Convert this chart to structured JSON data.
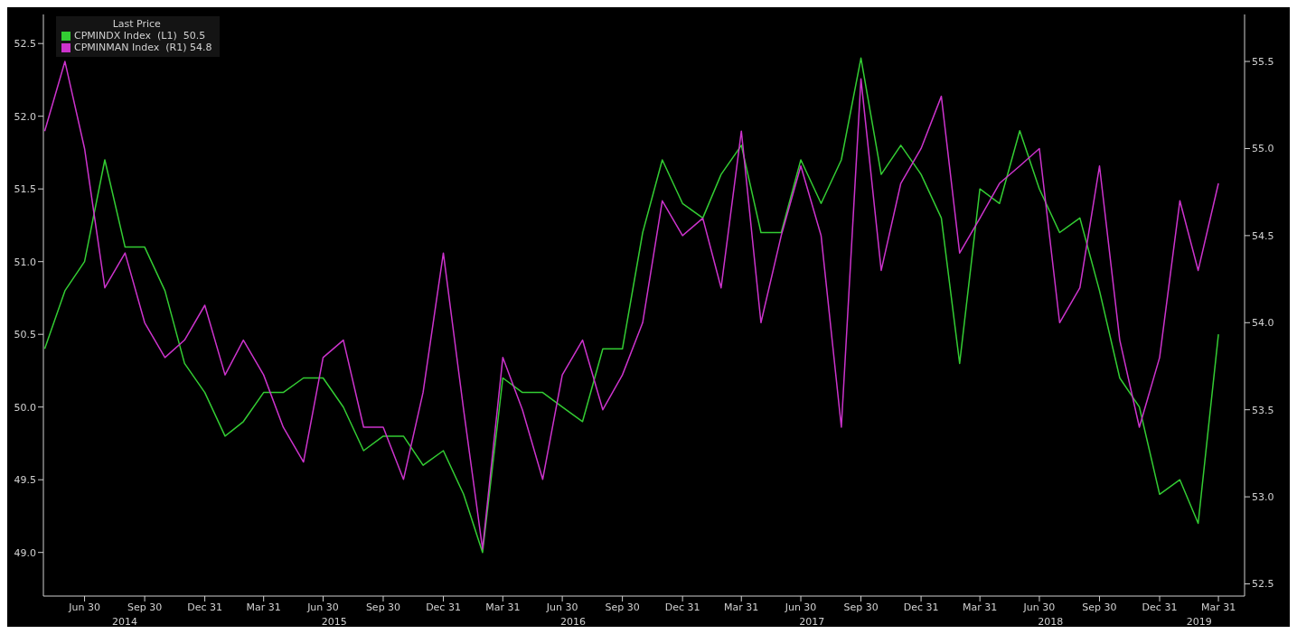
{
  "chart_data": {
    "type": "line",
    "legend_title": "Last Price",
    "x": [
      "2014-04-30",
      "2014-05-31",
      "2014-06-30",
      "2014-07-31",
      "2014-08-31",
      "2014-09-30",
      "2014-10-31",
      "2014-11-30",
      "2014-12-31",
      "2015-01-31",
      "2015-02-28",
      "2015-03-31",
      "2015-04-30",
      "2015-05-31",
      "2015-06-30",
      "2015-07-31",
      "2015-08-31",
      "2015-09-30",
      "2015-10-31",
      "2015-11-30",
      "2015-12-31",
      "2016-01-31",
      "2016-02-29",
      "2016-03-31",
      "2016-04-30",
      "2016-05-31",
      "2016-06-30",
      "2016-07-31",
      "2016-08-31",
      "2016-09-30",
      "2016-10-31",
      "2016-11-30",
      "2016-12-31",
      "2017-01-31",
      "2017-02-28",
      "2017-03-31",
      "2017-04-30",
      "2017-05-31",
      "2017-06-30",
      "2017-07-31",
      "2017-08-31",
      "2017-09-30",
      "2017-10-31",
      "2017-11-30",
      "2017-12-31",
      "2018-01-31",
      "2018-02-28",
      "2018-03-31",
      "2018-04-30",
      "2018-05-31",
      "2018-06-30",
      "2018-07-31",
      "2018-08-31",
      "2018-09-30",
      "2018-10-31",
      "2018-11-30",
      "2018-12-31",
      "2019-01-31",
      "2019-02-28",
      "2019-03-31"
    ],
    "series": [
      {
        "name": "CPMINDX Index  (L1)  50.5",
        "color": "#33cc33",
        "values": [
          50.4,
          50.8,
          51.0,
          51.7,
          51.1,
          51.1,
          50.8,
          50.3,
          50.1,
          49.8,
          49.9,
          50.1,
          50.1,
          50.2,
          50.2,
          50.0,
          49.7,
          49.8,
          49.8,
          49.6,
          49.7,
          49.4,
          49.0,
          50.2,
          50.1,
          50.1,
          50.0,
          49.9,
          50.4,
          50.4,
          51.2,
          51.7,
          51.4,
          51.3,
          51.6,
          51.8,
          51.2,
          51.2,
          51.7,
          51.4,
          51.7,
          52.4,
          51.6,
          51.8,
          51.6,
          51.3,
          50.3,
          51.5,
          51.4,
          51.9,
          51.5,
          51.2,
          51.3,
          50.8,
          50.2,
          50.0,
          49.4,
          49.5,
          49.2,
          50.5
        ]
      },
      {
        "name": "CPMINMAN Index  (R1) 54.8",
        "color": "#cc33cc",
        "axis": "y2",
        "values": [
          55.1,
          55.5,
          55.0,
          54.2,
          54.4,
          54.0,
          53.8,
          53.9,
          54.1,
          53.7,
          53.9,
          53.7,
          53.4,
          53.2,
          53.8,
          53.9,
          53.4,
          53.4,
          53.1,
          53.6,
          54.4,
          53.5,
          52.7,
          53.8,
          53.5,
          53.1,
          53.7,
          53.9,
          53.5,
          53.7,
          54.0,
          54.7,
          54.5,
          54.6,
          54.2,
          55.1,
          54.0,
          54.5,
          54.9,
          54.5,
          53.4,
          55.4,
          54.3,
          54.8,
          55.0,
          55.3,
          54.4,
          54.6,
          54.8,
          54.9,
          55.0,
          54.0,
          54.2,
          54.9,
          53.9,
          53.4,
          53.8,
          54.7,
          54.3,
          54.8
        ]
      }
    ],
    "xlim": [
      "2014-04-28",
      "2019-05-10"
    ],
    "xticks": [
      {
        "value": "2014-06-30",
        "label": "Jun 30"
      },
      {
        "value": "2014-09-30",
        "label": "Sep 30"
      },
      {
        "value": "2014-12-31",
        "label": "Dec 31"
      },
      {
        "value": "2015-03-31",
        "label": "Mar 31"
      },
      {
        "value": "2015-06-30",
        "label": "Jun 30"
      },
      {
        "value": "2015-09-30",
        "label": "Sep 30"
      },
      {
        "value": "2015-12-31",
        "label": "Dec 31"
      },
      {
        "value": "2016-03-31",
        "label": "Mar 31"
      },
      {
        "value": "2016-06-30",
        "label": "Jun 30"
      },
      {
        "value": "2016-09-30",
        "label": "Sep 30"
      },
      {
        "value": "2016-12-31",
        "label": "Dec 31"
      },
      {
        "value": "2017-03-31",
        "label": "Mar 31"
      },
      {
        "value": "2017-06-30",
        "label": "Jun 30"
      },
      {
        "value": "2017-09-30",
        "label": "Sep 30"
      },
      {
        "value": "2017-12-31",
        "label": "Dec 31"
      },
      {
        "value": "2018-03-31",
        "label": "Mar 31"
      },
      {
        "value": "2018-06-30",
        "label": "Jun 30"
      },
      {
        "value": "2018-09-30",
        "label": "Sep 30"
      },
      {
        "value": "2018-12-31",
        "label": "Dec 31"
      },
      {
        "value": "2019-03-31",
        "label": "Mar 31"
      }
    ],
    "annotations": [
      "2014",
      "2015",
      "2016",
      "2017",
      "2018",
      "2019"
    ],
    "ylim": [
      48.7,
      52.7
    ],
    "yticks": [
      {
        "value": 49,
        "label": "49.0"
      },
      {
        "value": 49.5,
        "label": "49.5"
      },
      {
        "value": 50,
        "label": "50.0"
      },
      {
        "value": 50.5,
        "label": "50.5"
      },
      {
        "value": 51,
        "label": "51.0"
      },
      {
        "value": 51.5,
        "label": "51.5"
      },
      {
        "value": 52,
        "label": "52.0"
      },
      {
        "value": 52.5,
        "label": "52.5"
      }
    ],
    "y2lim": [
      52.43,
      55.77
    ],
    "y2ticks": [
      {
        "value": 52.5,
        "label": "52.5"
      },
      {
        "value": 53,
        "label": "53.0"
      },
      {
        "value": 53.5,
        "label": "53.5"
      },
      {
        "value": 54,
        "label": "54.0"
      },
      {
        "value": 54.5,
        "label": "54.5"
      },
      {
        "value": 55,
        "label": "55.0"
      },
      {
        "value": 55.5,
        "label": "55.5"
      }
    ],
    "grid": false,
    "legend": "top left",
    "marker": "none",
    "line_style": "solid"
  }
}
